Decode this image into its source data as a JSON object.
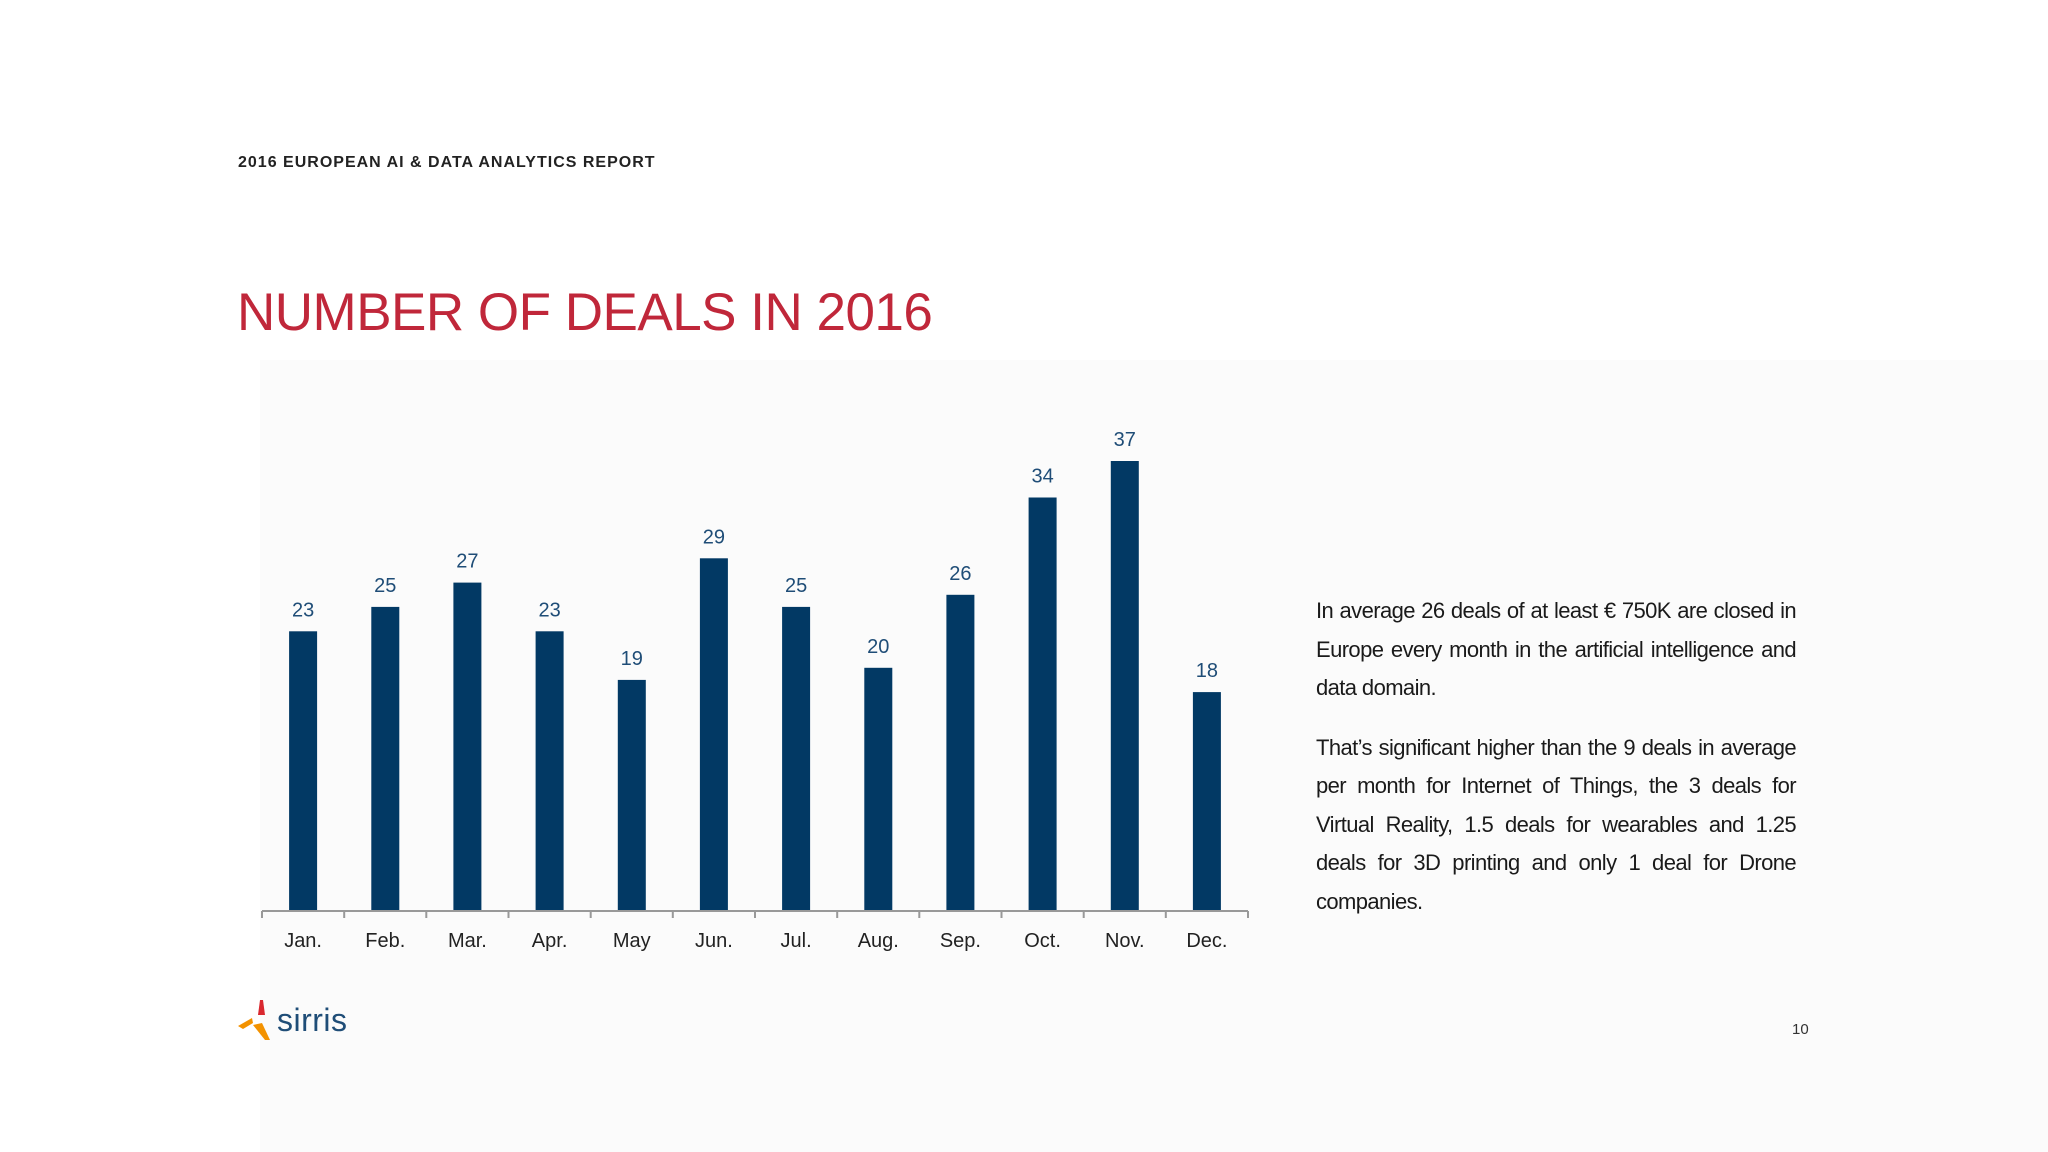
{
  "header": {
    "report_label": "2016 EUROPEAN AI & DATA ANALYTICS REPORT",
    "title": "NUMBER OF DEALS IN 2016"
  },
  "chart_data": {
    "type": "bar",
    "categories": [
      "Jan.",
      "Feb.",
      "Mar.",
      "Apr.",
      "May",
      "Jun.",
      "Jul.",
      "Aug.",
      "Sep.",
      "Oct.",
      "Nov.",
      "Dec."
    ],
    "values": [
      23,
      25,
      27,
      23,
      19,
      29,
      25,
      20,
      26,
      34,
      37,
      18
    ],
    "title": "",
    "xlabel": "",
    "ylabel": "",
    "ylim": [
      0,
      37
    ],
    "grid": false,
    "legend": "none",
    "data_labels": true,
    "bar_color": "#023964",
    "label_color": "#1f4d77"
  },
  "commentary": {
    "paragraph_1": "In average 26 deals of at least € 750K are closed in Europe every month in the artificial intelligence and data domain.",
    "paragraph_2": "That’s significant higher than the 9 deals in average per month for Internet of Things, the 3 deals for Virtual Reality, 1.5 deals for wearables and 1.25 deals for 3D printing and only 1 deal for Drone companies."
  },
  "footer": {
    "logo_text": "sirris",
    "page_number": "10"
  },
  "colors": {
    "accent": "#c0273a",
    "bar": "#023964",
    "logo_text": "#1f4d77",
    "logo_red": "#d9282f",
    "logo_orange": "#f39200"
  }
}
